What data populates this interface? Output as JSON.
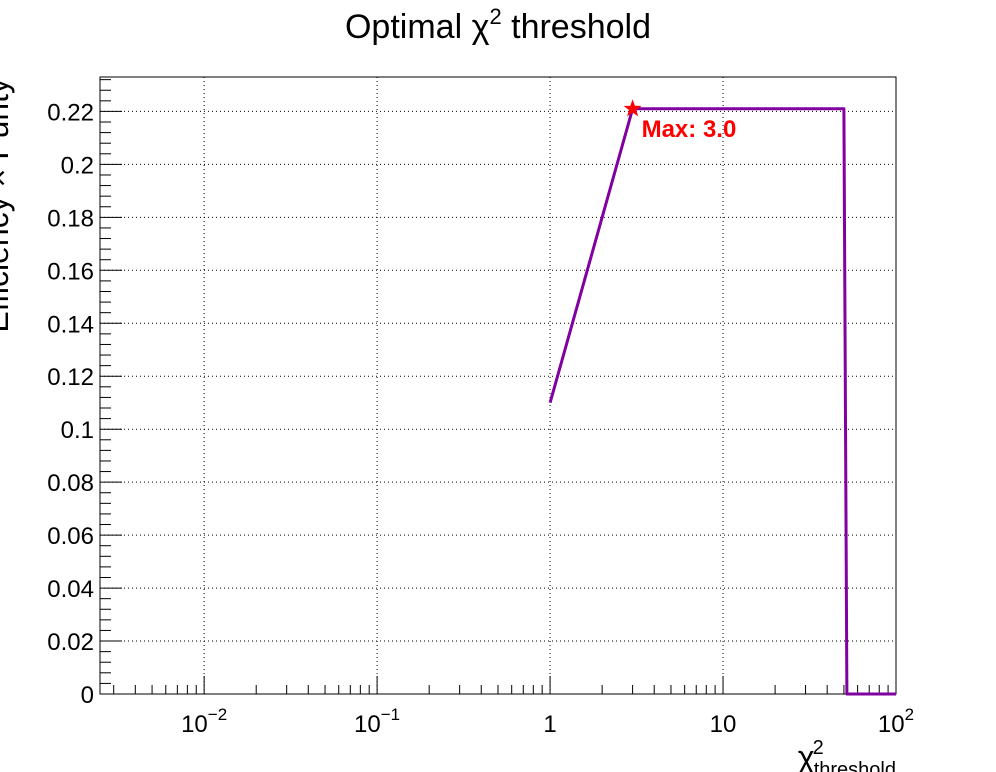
{
  "chart_data": {
    "type": "line",
    "title": "Optimal χ² threshold",
    "title_parts": {
      "base": "Optimal ",
      "chi": "χ",
      "sup": "2",
      "rest": " threshold"
    },
    "xlabel": {
      "base": "χ",
      "sup": "2",
      "sub": "threshold"
    },
    "ylabel": "Efficiency × Purity",
    "xscale": "log",
    "xlim": [
      0.0025,
      100
    ],
    "ylim": [
      0,
      0.233
    ],
    "grid": true,
    "x_ticks": [
      {
        "value": 0.01,
        "base": "10",
        "exp": "−2"
      },
      {
        "value": 0.1,
        "base": "10",
        "exp": "−1"
      },
      {
        "value": 1,
        "base": "1",
        "exp": ""
      },
      {
        "value": 10,
        "base": "10",
        "exp": ""
      },
      {
        "value": 100,
        "base": "10",
        "exp": "2"
      }
    ],
    "y_ticks": [
      {
        "value": 0,
        "label": "0"
      },
      {
        "value": 0.02,
        "label": "0.02"
      },
      {
        "value": 0.04,
        "label": "0.04"
      },
      {
        "value": 0.06,
        "label": "0.06"
      },
      {
        "value": 0.08,
        "label": "0.08"
      },
      {
        "value": 0.1,
        "label": "0.1"
      },
      {
        "value": 0.12,
        "label": "0.12"
      },
      {
        "value": 0.14,
        "label": "0.14"
      },
      {
        "value": 0.16,
        "label": "0.16"
      },
      {
        "value": 0.18,
        "label": "0.18"
      },
      {
        "value": 0.2,
        "label": "0.2"
      },
      {
        "value": 0.22,
        "label": "0.22"
      }
    ],
    "series": [
      {
        "color": "#8000a0",
        "x": [
          1,
          3,
          50,
          52,
          100
        ],
        "y": [
          0.11,
          0.221,
          0.221,
          0.0,
          0.0
        ]
      }
    ],
    "marker": {
      "x": 3,
      "y": 0.221,
      "color": "#ff0000",
      "label": "Max: 3.0"
    }
  }
}
